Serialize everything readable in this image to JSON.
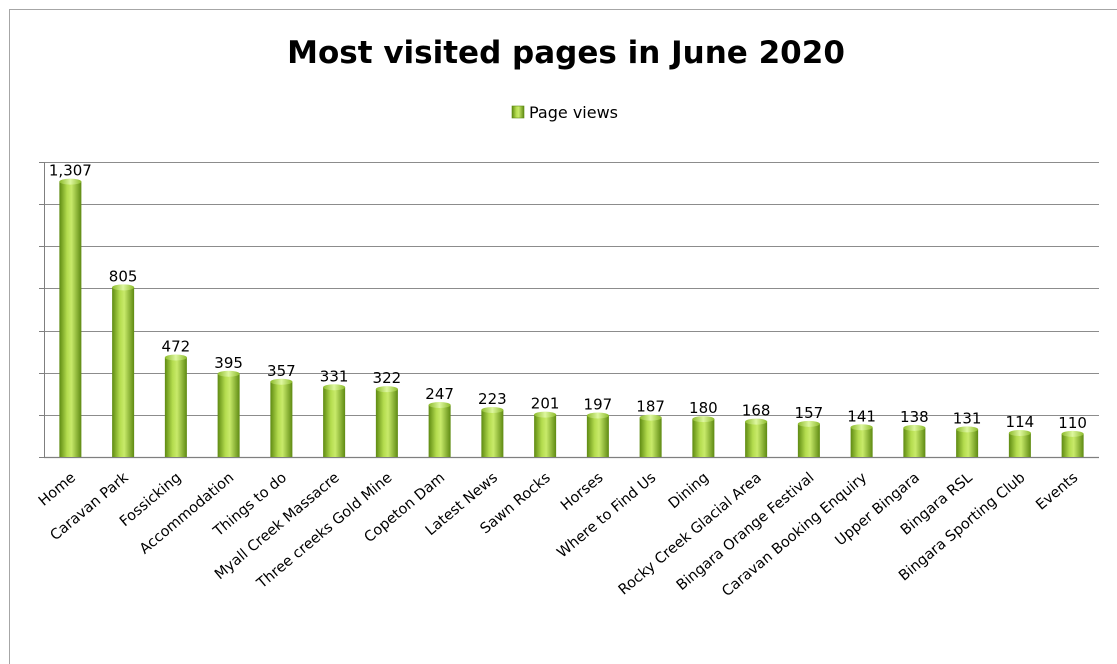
{
  "chart_data": {
    "type": "bar",
    "title": "Most visited pages in June 2020",
    "legend": {
      "position": "top",
      "entries": [
        "Page views"
      ]
    },
    "series": [
      {
        "name": "Page views",
        "color": "#9acd32",
        "values": [
          1307,
          805,
          472,
          395,
          357,
          331,
          322,
          247,
          223,
          201,
          197,
          187,
          180,
          168,
          157,
          141,
          138,
          131,
          114,
          110
        ],
        "value_labels": [
          "1,307",
          "805",
          "472",
          "395",
          "357",
          "331",
          "322",
          "247",
          "223",
          "201",
          "197",
          "187",
          "180",
          "168",
          "157",
          "141",
          "138",
          "131",
          "114",
          "110"
        ]
      }
    ],
    "categories": [
      "Home",
      "Caravan Park",
      "Fossicking",
      "Accommodation",
      "Things to do",
      "Myall Creek Massacre",
      "Three creeks Gold Mine",
      "Copeton Dam",
      "Latest News",
      "Sawn Rocks",
      "Horses",
      "Where to Find Us",
      "Dining",
      "Rocky Creek Glacial Area",
      "Bingara Orange Festival",
      "Caravan Booking Enquiry",
      "Upper Bingara",
      "Bingara RSL",
      "Bingara Sporting Club",
      "Events"
    ],
    "ylim": [
      0,
      1400
    ],
    "ytick_step": 200,
    "grid": true,
    "xlabel": "",
    "ylabel": ""
  }
}
